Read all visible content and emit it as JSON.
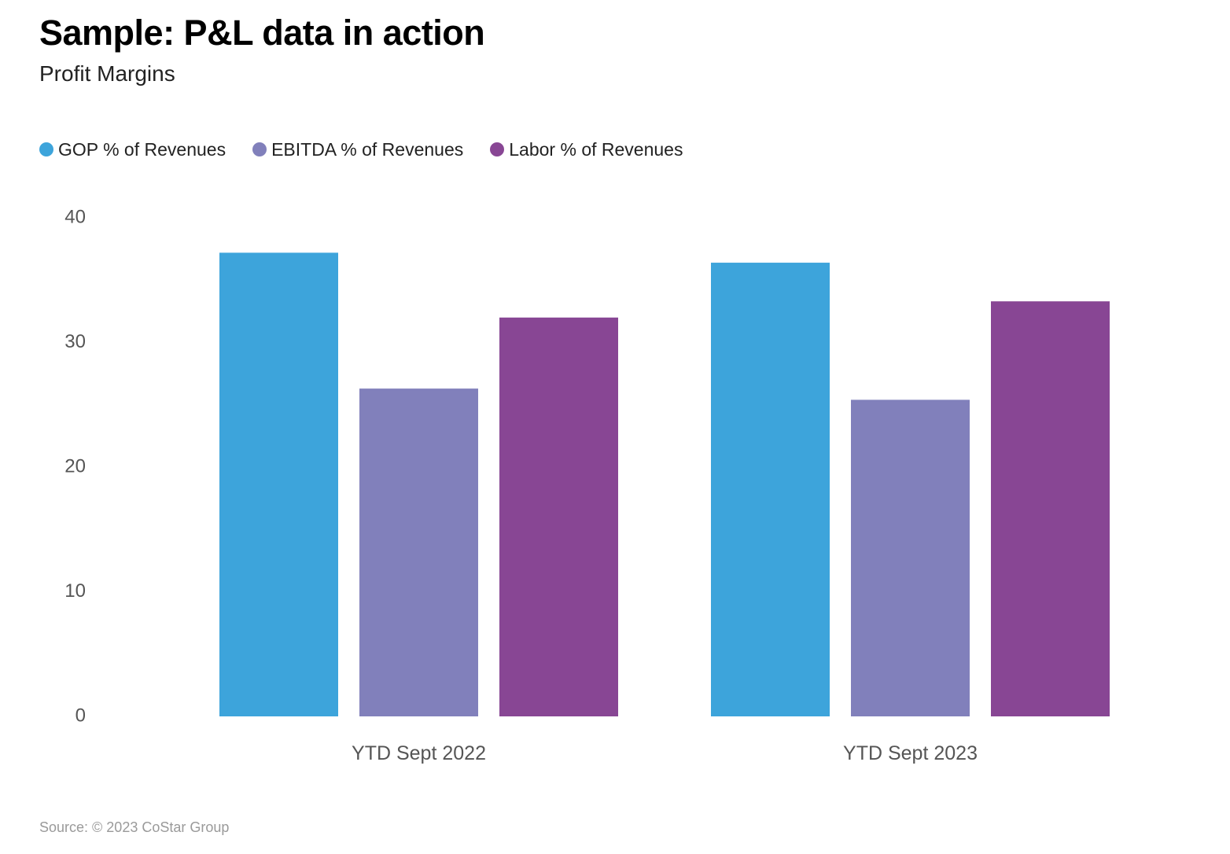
{
  "header": {
    "title": "Sample: P&L data in action",
    "subtitle": "Profit Margins"
  },
  "footer": {
    "source": "Source: © 2023 CoStar Group"
  },
  "chart_data": {
    "type": "bar",
    "title": "Sample: P&L data in action",
    "subtitle": "Profit Margins",
    "xlabel": "",
    "ylabel": "",
    "ylim": [
      0,
      40
    ],
    "yticks": [
      0,
      10,
      20,
      30,
      40
    ],
    "grid": false,
    "legend_position": "top-left",
    "categories": [
      "YTD Sept 2022",
      "YTD Sept 2023"
    ],
    "series": [
      {
        "name": "GOP % of Revenues",
        "color": "#3da4db",
        "values": [
          37.2,
          36.4
        ]
      },
      {
        "name": "EBITDA % of Revenues",
        "color": "#8180bb",
        "values": [
          26.3,
          25.4
        ]
      },
      {
        "name": "Labor % of Revenues",
        "color": "#884694",
        "values": [
          32.0,
          33.3
        ]
      }
    ]
  }
}
